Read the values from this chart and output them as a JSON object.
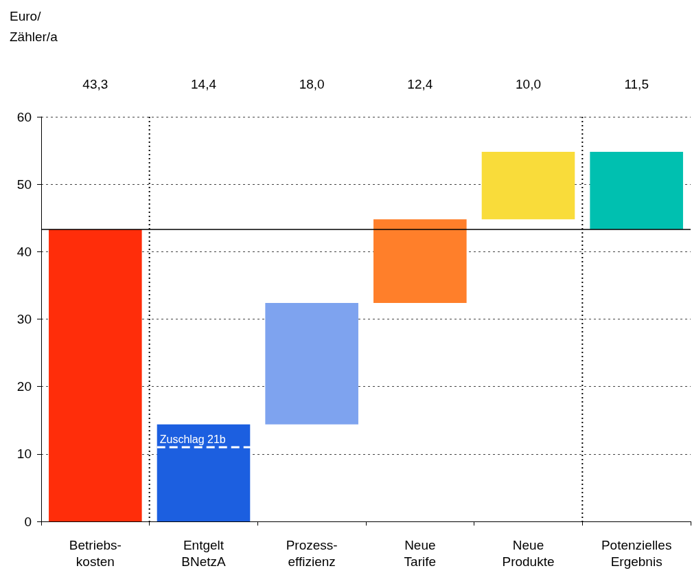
{
  "chart_data": {
    "type": "bar",
    "categories": [
      "Betriebs-\nkosten",
      "Entgelt\nBNetzA",
      "Prozess-\neffizienz",
      "Neue\nTarife",
      "Neue\nProdukte",
      "Potenzielles\nErgebnis"
    ],
    "values": [
      43.3,
      14.4,
      18.0,
      12.4,
      10.0,
      11.5
    ],
    "base": [
      0,
      0,
      14.4,
      32.4,
      44.8,
      43.3
    ],
    "colors": [
      "#ff2d0a",
      "#1c5fe0",
      "#7ea3ef",
      "#ff7f2a",
      "#f9dc3a",
      "#00c0b0"
    ],
    "value_labels": [
      "43,3",
      "14,4",
      "18,0",
      "12,4",
      "10,0",
      "11,5"
    ],
    "ylim": [
      0,
      60
    ],
    "yticks": [
      0,
      10,
      20,
      30,
      40,
      50,
      60
    ],
    "grid": "y",
    "ref_lines": [
      {
        "axis": "y",
        "value": 43.3,
        "color": "#000000",
        "line_style": "solid"
      },
      {
        "axis": "y",
        "value": 11,
        "label": "Zuschlag 21b",
        "color": "#ffffff",
        "line_style": "dashed"
      }
    ],
    "annotations": [
      "Euro/\nZähler/a"
    ]
  }
}
